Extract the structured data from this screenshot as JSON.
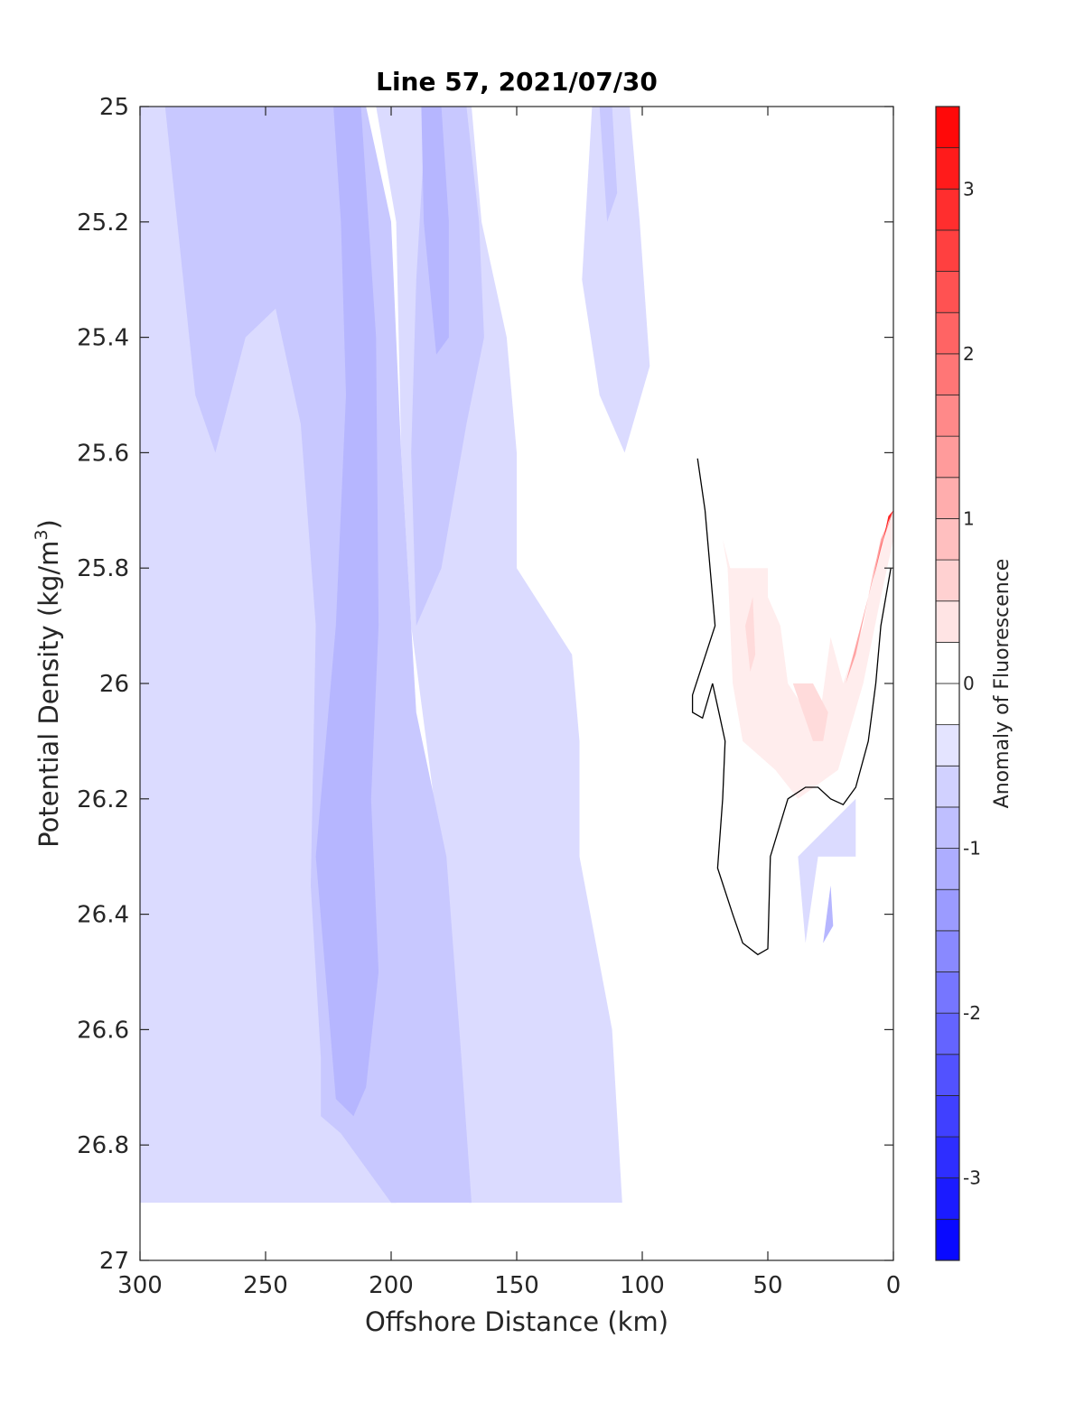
{
  "chart_data": {
    "type": "heatmap",
    "title": "Line 57, 2021/07/30",
    "xlabel": "Offshore Distance (km)",
    "ylabel_main": "Potential Density (kg/m",
    "ylabel_sup": "3",
    "ylabel_close": ")",
    "colorbar_label": "Anomaly of Fluorescence",
    "xlim": [
      300,
      0
    ],
    "ylim": [
      25,
      27
    ],
    "x_reversed": true,
    "y_reversed": true,
    "xticks": [
      300,
      250,
      200,
      150,
      100,
      50,
      0
    ],
    "xtick_labels": [
      "300",
      "250",
      "200",
      "150",
      "100",
      "50",
      "0"
    ],
    "yticks": [
      25,
      25.2,
      25.4,
      25.6,
      25.8,
      26,
      26.2,
      26.4,
      26.6,
      26.8,
      27
    ],
    "ytick_labels": [
      "25",
      "25.2",
      "25.4",
      "25.6",
      "25.8",
      "26",
      "26.2",
      "26.4",
      "26.6",
      "26.8",
      "27"
    ],
    "colorbar": {
      "range": [
        -3.5,
        3.5
      ],
      "step": 0.25,
      "ticks": [
        -3,
        -2,
        -1,
        0,
        1,
        2,
        3
      ],
      "tick_labels": [
        "-3",
        "-2",
        "-1",
        "0",
        "1",
        "2",
        "3"
      ],
      "low_color": "#0000ff",
      "mid_color": "#ffffff",
      "high_color": "#ff0000"
    },
    "regions": [
      {
        "level": -0.5,
        "points": [
          [
            300,
            25
          ],
          [
            252,
            25
          ],
          [
            232,
            25.35
          ],
          [
            218,
            25.6
          ],
          [
            205,
            25.95
          ],
          [
            215,
            26.3
          ],
          [
            207,
            26.5
          ],
          [
            198,
            26.9
          ],
          [
            300,
            26.9
          ]
        ]
      },
      {
        "level": -0.5,
        "points": [
          [
            206,
            25
          ],
          [
            198,
            25.2
          ],
          [
            196,
            25.6
          ],
          [
            192,
            25.9
          ],
          [
            180,
            26.3
          ],
          [
            169,
            26.9
          ],
          [
            108,
            26.9
          ],
          [
            112,
            26.6
          ],
          [
            125,
            26.3
          ],
          [
            125,
            26.1
          ],
          [
            128,
            25.95
          ],
          [
            150,
            25.8
          ],
          [
            150,
            25.6
          ],
          [
            154,
            25.4
          ],
          [
            164,
            25.2
          ],
          [
            168,
            25
          ]
        ]
      },
      {
        "level": -0.5,
        "points": [
          [
            120,
            25
          ],
          [
            105,
            25
          ],
          [
            101,
            25.2
          ],
          [
            97,
            25.45
          ],
          [
            107,
            25.6
          ],
          [
            117,
            25.5
          ],
          [
            124,
            25.3
          ]
        ]
      },
      {
        "level": -0.5,
        "points": [
          [
            15,
            26.2
          ],
          [
            15,
            26.3
          ],
          [
            30,
            26.3
          ],
          [
            35,
            26.45
          ],
          [
            38,
            26.3
          ]
        ]
      },
      {
        "level": -0.75,
        "points": [
          [
            290,
            25
          ],
          [
            278,
            25.5
          ],
          [
            270,
            25.6
          ],
          [
            258,
            25.4
          ],
          [
            246,
            25.35
          ],
          [
            236,
            25.55
          ],
          [
            230,
            25.9
          ],
          [
            232,
            26.35
          ],
          [
            228,
            26.65
          ],
          [
            228,
            26.75
          ],
          [
            220,
            26.78
          ],
          [
            200,
            26.9
          ],
          [
            168,
            26.9
          ],
          [
            172,
            26.65
          ],
          [
            178,
            26.3
          ],
          [
            190,
            26.05
          ],
          [
            196,
            25.6
          ],
          [
            200,
            25.2
          ],
          [
            210,
            25
          ]
        ]
      },
      {
        "level": -0.75,
        "points": [
          [
            170,
            25
          ],
          [
            165,
            25.2
          ],
          [
            163,
            25.4
          ],
          [
            170,
            25.55
          ],
          [
            180,
            25.8
          ],
          [
            190,
            25.9
          ],
          [
            192,
            25.6
          ],
          [
            190,
            25.3
          ],
          [
            186,
            25
          ]
        ]
      },
      {
        "level": -0.75,
        "points": [
          [
            117,
            25
          ],
          [
            112,
            25
          ],
          [
            110,
            25.15
          ],
          [
            114,
            25.2
          ]
        ]
      },
      {
        "level": -1.0,
        "points": [
          [
            223,
            25
          ],
          [
            212,
            25
          ],
          [
            206,
            25.4
          ],
          [
            205,
            25.9
          ],
          [
            208,
            26.2
          ],
          [
            206,
            26.4
          ],
          [
            205,
            26.5
          ],
          [
            210,
            26.7
          ],
          [
            215,
            26.75
          ],
          [
            222,
            26.72
          ],
          [
            230,
            26.3
          ],
          [
            222,
            25.9
          ],
          [
            218,
            25.5
          ],
          [
            220,
            25.2
          ]
        ]
      },
      {
        "level": -1.0,
        "points": [
          [
            188,
            25
          ],
          [
            180,
            25
          ],
          [
            177,
            25.2
          ],
          [
            177,
            25.4
          ],
          [
            182,
            25.43
          ],
          [
            187,
            25.2
          ]
        ]
      },
      {
        "level": -1.0,
        "points": [
          [
            25,
            26.35
          ],
          [
            28,
            26.45
          ],
          [
            24,
            26.42
          ]
        ]
      },
      {
        "level": 0.25,
        "points": [
          [
            68,
            25.75
          ],
          [
            66,
            25.8
          ],
          [
            64,
            26
          ],
          [
            60,
            26.1
          ],
          [
            47,
            26.15
          ],
          [
            38,
            26.2
          ],
          [
            22,
            26.15
          ],
          [
            12,
            26.0
          ],
          [
            5,
            25.85
          ],
          [
            0,
            25.75
          ],
          [
            0,
            25.7
          ],
          [
            8,
            25.8
          ],
          [
            12,
            25.9
          ],
          [
            20,
            26
          ],
          [
            25,
            25.92
          ],
          [
            30,
            26.08
          ],
          [
            42,
            26
          ],
          [
            45,
            25.9
          ],
          [
            50,
            25.85
          ],
          [
            50,
            25.8
          ],
          [
            65,
            25.8
          ]
        ]
      },
      {
        "level": 0.5,
        "points": [
          [
            40,
            26
          ],
          [
            36,
            26.05
          ],
          [
            32,
            26.1
          ],
          [
            28,
            26.1
          ],
          [
            26,
            26.05
          ],
          [
            32,
            26
          ],
          [
            38,
            26
          ]
        ]
      },
      {
        "level": 0.5,
        "points": [
          [
            56,
            25.85
          ],
          [
            55,
            25.95
          ],
          [
            57,
            25.98
          ],
          [
            59,
            25.9
          ]
        ]
      },
      {
        "level": 1.25,
        "points": [
          [
            0,
            25.7
          ],
          [
            5,
            25.75
          ],
          [
            10,
            25.85
          ],
          [
            15,
            25.95
          ],
          [
            19,
            26.0
          ],
          [
            13,
            25.9
          ],
          [
            7,
            25.8
          ],
          [
            2,
            25.72
          ]
        ]
      },
      {
        "level": 2.0,
        "points": [
          [
            0,
            25.7
          ],
          [
            4,
            25.75
          ],
          [
            8,
            25.82
          ],
          [
            5,
            25.76
          ],
          [
            1,
            25.71
          ]
        ]
      },
      {
        "level": 3.0,
        "points": [
          [
            0,
            25.7
          ],
          [
            2,
            25.72
          ],
          [
            4,
            25.75
          ],
          [
            2,
            25.71
          ]
        ]
      }
    ],
    "contour_zero_line": [
      [
        78,
        25.61
      ],
      [
        75,
        25.7
      ],
      [
        71,
        25.9
      ],
      [
        80,
        26.02
      ],
      [
        80,
        26.05
      ],
      [
        76,
        26.06
      ],
      [
        72,
        26.0
      ],
      [
        69,
        26.06
      ],
      [
        67,
        26.1
      ],
      [
        68,
        26.2
      ],
      [
        70,
        26.32
      ],
      [
        64,
        26.4
      ],
      [
        60,
        26.45
      ],
      [
        54,
        26.47
      ],
      [
        50,
        26.46
      ],
      [
        49,
        26.3
      ],
      [
        42,
        26.2
      ],
      [
        35,
        26.18
      ],
      [
        30,
        26.18
      ],
      [
        25,
        26.2
      ],
      [
        20,
        26.21
      ],
      [
        15,
        26.18
      ],
      [
        10,
        26.1
      ],
      [
        7,
        26.0
      ],
      [
        5,
        25.9
      ],
      [
        1,
        25.8
      ]
    ]
  }
}
